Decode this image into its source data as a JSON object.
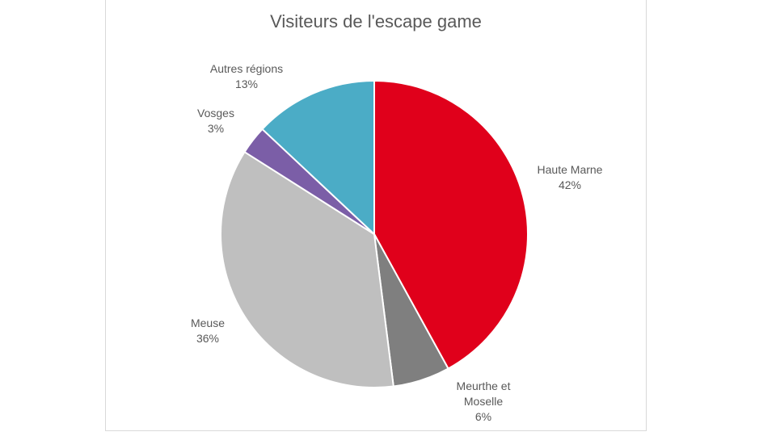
{
  "chart_data": {
    "type": "pie",
    "title": "Visiteurs de l'escape game",
    "slices": [
      {
        "name": "Haute Marne",
        "value": 42,
        "label": "42%",
        "color": "#e0001b",
        "name_lines": [
          "Haute Marne"
        ]
      },
      {
        "name": "Meurthe et Moselle",
        "value": 6,
        "label": "6%",
        "color": "#7f7f7f",
        "name_lines": [
          "Meurthe et",
          "Moselle"
        ]
      },
      {
        "name": "Meuse",
        "value": 36,
        "label": "36%",
        "color": "#bfbfbf",
        "name_lines": [
          "Meuse"
        ]
      },
      {
        "name": "Vosges",
        "value": 3,
        "label": "3%",
        "color": "#7b5ea7",
        "name_lines": [
          "Vosges"
        ]
      },
      {
        "name": "Autres régions",
        "value": 13,
        "label": "13%",
        "color": "#4bacc6",
        "name_lines": [
          "Autres régions"
        ]
      }
    ],
    "start_angle": "12 o'clock",
    "direction": "clockwise",
    "legend": "none"
  }
}
